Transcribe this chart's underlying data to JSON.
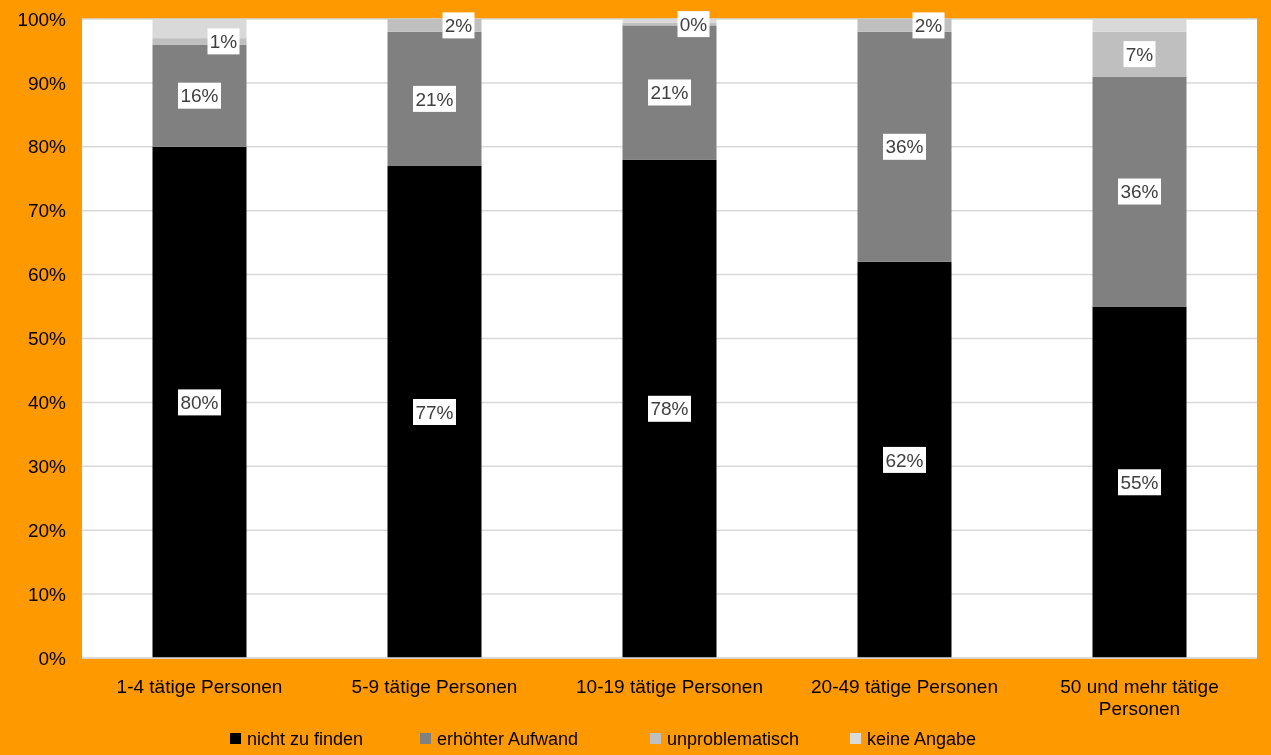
{
  "chart_data": {
    "type": "bar",
    "stacked": true,
    "categories": [
      "1-4 tätige Personen",
      "5-9 tätige Personen",
      "10-19 tätige Personen",
      "20-49 tätige Personen",
      "50 und mehr tätige Personen"
    ],
    "series": [
      {
        "name": "nicht zu finden",
        "color": "#000000",
        "values": [
          80,
          77,
          78,
          62,
          55
        ],
        "value_labels": [
          "80%",
          "77%",
          "78%",
          "62%",
          "55%"
        ]
      },
      {
        "name": "erhöhter Aufwand",
        "color": "#808080",
        "values": [
          16,
          21,
          21,
          36,
          36
        ],
        "value_labels": [
          "16%",
          "21%",
          "21%",
          "36%",
          "36%"
        ]
      },
      {
        "name": "unproblematisch",
        "color": "#bfbfbf",
        "values": [
          1,
          2,
          0.4,
          2,
          7
        ],
        "value_labels": [
          "1%",
          "2%",
          "0%",
          "2%",
          "7%"
        ]
      },
      {
        "name": "keine Angabe",
        "color": "#d9d9d9",
        "values": [
          3,
          0,
          0.6,
          0,
          2
        ]
      }
    ],
    "ylim": [
      0,
      100
    ],
    "yticks": [
      {
        "value": 0,
        "label": "0%"
      },
      {
        "value": 10,
        "label": "10%"
      },
      {
        "value": 20,
        "label": "20%"
      },
      {
        "value": 30,
        "label": "30%"
      },
      {
        "value": 40,
        "label": "40%"
      },
      {
        "value": 50,
        "label": "50%"
      },
      {
        "value": 60,
        "label": "60%"
      },
      {
        "value": 70,
        "label": "70%"
      },
      {
        "value": 80,
        "label": "80%"
      },
      {
        "value": 90,
        "label": "90%"
      },
      {
        "value": 100,
        "label": "100%"
      }
    ],
    "grid": "y",
    "legend": "bottom"
  }
}
